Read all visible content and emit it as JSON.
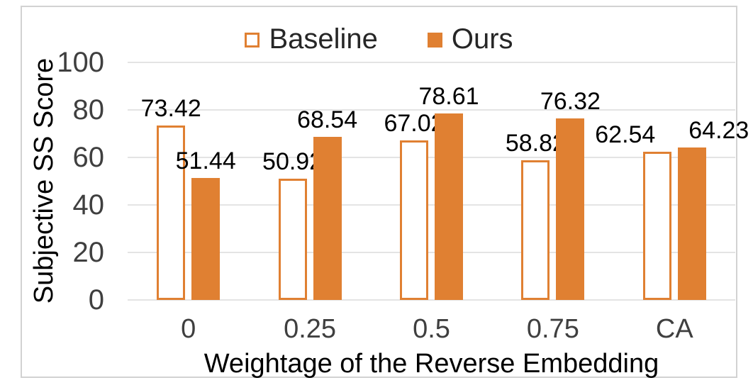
{
  "chart_data": {
    "type": "bar",
    "title": "",
    "categories": [
      "0",
      "0.25",
      "0.5",
      "0.75",
      "CA"
    ],
    "series": [
      {
        "name": "Baseline",
        "style": "outlined",
        "values": [
          73.42,
          50.92,
          67.02,
          58.82,
          62.54
        ]
      },
      {
        "name": "Ours",
        "style": "filled",
        "values": [
          51.44,
          68.54,
          78.61,
          76.32,
          64.23
        ]
      }
    ],
    "xlabel": "Weightage of the Reverse Embedding",
    "ylabel": "Subjective SS Score",
    "ylim": [
      0,
      100
    ],
    "yticks": [
      0,
      20,
      40,
      60,
      80,
      100
    ],
    "grid": true,
    "legend_position": "top",
    "data_labels": true,
    "colors": {
      "accent": "#E08032",
      "grid": "#E4E4E4",
      "frame": "#D2D2D2",
      "label_text": "#000000",
      "tick_text": "#3F3F3F",
      "legend_text": "#262626"
    }
  }
}
